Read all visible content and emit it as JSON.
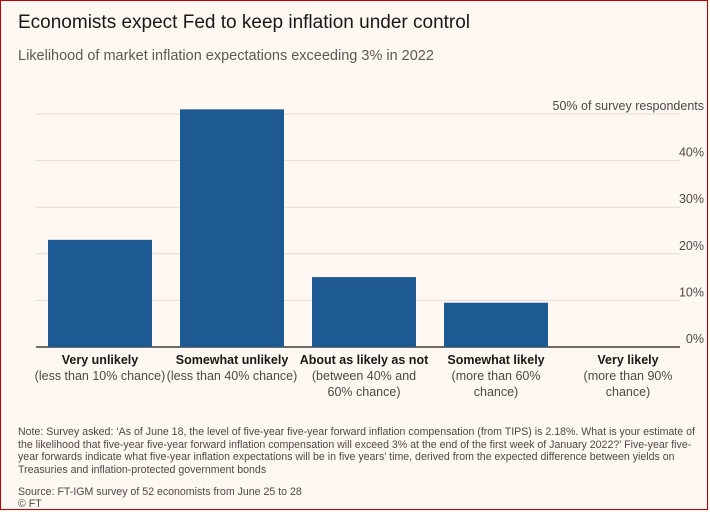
{
  "title": "Economists expect Fed to keep inflation under control",
  "subtitle": "Likelihood of market inflation expectations exceeding 3% in 2022",
  "note": "Note: Survey asked: ‘As of June 18, the level of five-year five-year forward inflation compensation (from TIPS) is 2.18%. What is your estimate of the likelihood that five-year five-year forward inflation compensation will exceed 3% at the end of the first week of January 2022?’ Five-year five-year forwards indicate what five-year inflation expectations will be in five years’ time, derived from the expected difference between yields on Treasuries and inflation-protected government bonds",
  "source": "Source: FT-IGM survey of 52 economists from June 25 to 28",
  "credit": "© FT",
  "colors": {
    "bar": "#1d5a94",
    "grid": "#e4dcd5",
    "frame": "#c00000"
  },
  "chart_data": {
    "type": "bar",
    "categories": [
      "Very unlikely",
      "Somewhat unlikely",
      "About as likely as not",
      "Somewhat likely",
      "Very likely"
    ],
    "category_details": [
      "(less than 10% chance)",
      "(less than 40% chance)",
      "(between 40% and 60% chance)",
      "(more than 60% chance)",
      "(more than 90% chance)"
    ],
    "values": [
      23,
      51,
      15,
      9.5,
      0
    ],
    "ylim": [
      0,
      50
    ],
    "yticks": [
      0,
      10,
      20,
      30,
      40,
      50
    ],
    "ytick_labels": [
      "0%",
      "10%",
      "20%",
      "30%",
      "40%",
      "50% of survey respondents"
    ],
    "grid": true
  }
}
